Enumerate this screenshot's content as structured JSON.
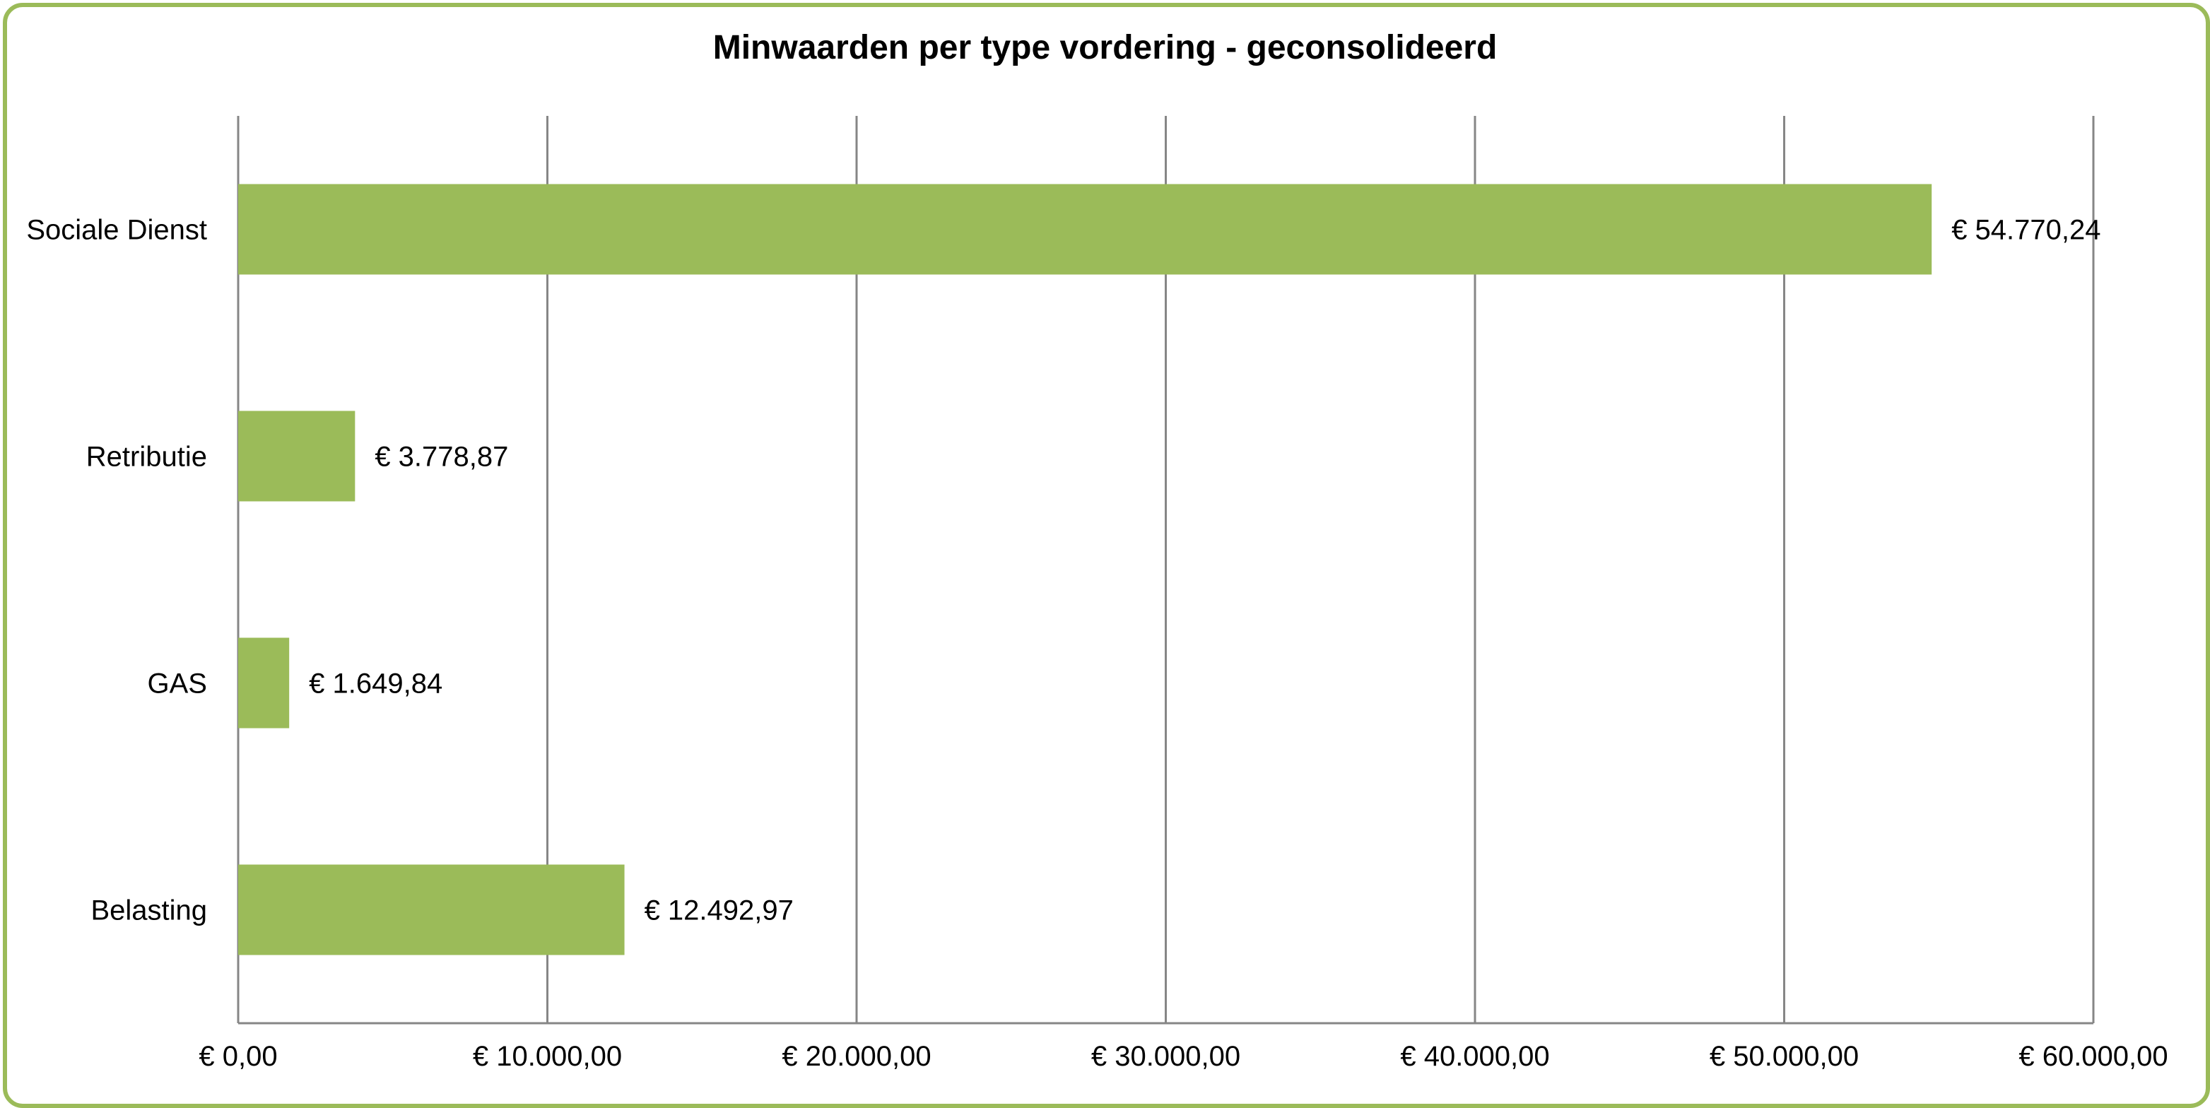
{
  "chart_data": {
    "type": "bar",
    "orientation": "horizontal",
    "title": "Minwaarden per type vordering - geconsolideerd",
    "categories": [
      "Sociale Dienst",
      "Retributie",
      "GAS",
      "Belasting"
    ],
    "values": [
      54770.24,
      3778.87,
      1649.84,
      12492.97
    ],
    "data_labels": [
      "€ 54.770,24",
      "€ 3.778,87",
      "€ 1.649,84",
      "€ 12.492,97"
    ],
    "xlim": [
      0,
      60000
    ],
    "x_ticks": [
      0,
      10000,
      20000,
      30000,
      40000,
      50000,
      60000
    ],
    "x_tick_labels": [
      "€ 0,00",
      "€ 10.000,00",
      "€ 20.000,00",
      "€ 30.000,00",
      "€ 40.000,00",
      "€ 50.000,00",
      "€ 60.000,00"
    ],
    "xlabel": "",
    "ylabel": "",
    "grid": "vertical",
    "legend": "none",
    "colors": {
      "bar": "#9bbb59",
      "border": "#9bbb59",
      "grid": "#868686"
    }
  }
}
